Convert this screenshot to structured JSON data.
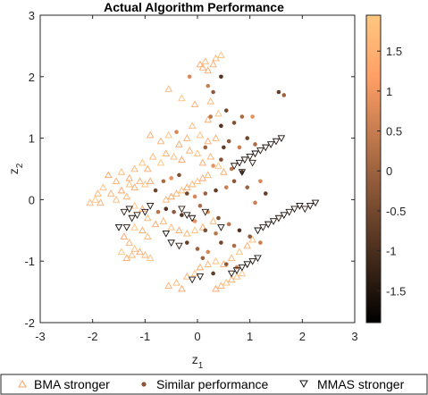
{
  "chart_data": {
    "type": "scatter",
    "title": "Actual Algorithm Performance",
    "xlabel": "z",
    "xlabel_sub": "1",
    "ylabel": "z",
    "ylabel_sub": "2",
    "xlim": [
      -3,
      3
    ],
    "ylim": [
      -2,
      3
    ],
    "x_ticks": [
      "-3",
      "-2",
      "-1",
      "0",
      "1",
      "2",
      "3"
    ],
    "y_ticks": [
      "-2",
      "-1",
      "0",
      "1",
      "2",
      "3"
    ],
    "grid": false,
    "colorbar": {
      "range": [
        -1.9,
        1.95
      ],
      "ticks": [
        "-1.5",
        "-1",
        "-0.5",
        "0",
        "0.5",
        "1",
        "1.5"
      ],
      "colormap": "copper",
      "low_color": "#000000",
      "high_color": "#ffc77f"
    },
    "legend": {
      "placement": "bottom",
      "entries": [
        "BMA stronger",
        "Similar performance",
        "MMAS stronger"
      ]
    },
    "series": [
      {
        "name": "BMA stronger",
        "marker": "triangle-up",
        "points": [
          [
            0.05,
            2.2
          ],
          [
            0.1,
            2.15
          ],
          [
            0.15,
            2.25
          ],
          [
            0.2,
            2.1
          ],
          [
            0.35,
            2.3
          ],
          [
            0.45,
            2.35
          ],
          [
            0.3,
            2.2
          ],
          [
            -0.55,
            1.8
          ],
          [
            -0.3,
            1.65
          ],
          [
            -0.05,
            1.55
          ],
          [
            0.25,
            1.6
          ],
          [
            -0.9,
            1.05
          ],
          [
            -0.7,
            0.95
          ],
          [
            -0.55,
            1.05
          ],
          [
            -0.35,
            0.9
          ],
          [
            -0.2,
            1.0
          ],
          [
            0.05,
            1.05
          ],
          [
            0.2,
            0.95
          ],
          [
            0.35,
            1.0
          ],
          [
            0.4,
            1.4
          ],
          [
            0.2,
            1.3
          ],
          [
            -0.1,
            1.2
          ],
          [
            -1.7,
            0.4
          ],
          [
            -1.55,
            0.3
          ],
          [
            -1.45,
            0.45
          ],
          [
            -1.3,
            0.35
          ],
          [
            -1.2,
            0.5
          ],
          [
            -1.05,
            0.6
          ],
          [
            -0.95,
            0.5
          ],
          [
            -0.85,
            0.7
          ],
          [
            -0.7,
            0.6
          ],
          [
            -0.6,
            0.75
          ],
          [
            -0.45,
            0.7
          ],
          [
            -0.3,
            0.65
          ],
          [
            -0.15,
            0.8
          ],
          [
            0.0,
            0.75
          ],
          [
            0.1,
            0.6
          ],
          [
            0.25,
            0.7
          ],
          [
            0.4,
            0.55
          ],
          [
            0.5,
            0.45
          ],
          [
            -1.9,
            0.1
          ],
          [
            -1.8,
            0.2
          ],
          [
            -1.65,
            0.1
          ],
          [
            -1.55,
            0.0
          ],
          [
            -1.45,
            0.15
          ],
          [
            -1.35,
            0.05
          ],
          [
            -1.3,
            0.25
          ],
          [
            -1.2,
            0.2
          ],
          [
            -1.1,
            0.3
          ],
          [
            -1.0,
            0.25
          ],
          [
            -0.9,
            0.3
          ],
          [
            -2.05,
            -0.05
          ],
          [
            -1.95,
            0.0
          ],
          [
            -1.85,
            -0.05
          ],
          [
            -0.6,
            0.0
          ],
          [
            -0.5,
            0.05
          ],
          [
            -0.4,
            0.1
          ],
          [
            -0.3,
            0.15
          ],
          [
            -0.2,
            0.2
          ],
          [
            -0.1,
            0.25
          ],
          [
            0.0,
            0.3
          ],
          [
            0.1,
            0.35
          ],
          [
            0.2,
            0.4
          ],
          [
            -1.2,
            -0.1
          ],
          [
            -1.05,
            -0.15
          ],
          [
            -0.95,
            -0.3
          ],
          [
            -0.8,
            -0.4
          ],
          [
            -0.65,
            -0.35
          ],
          [
            -0.5,
            -0.45
          ],
          [
            -0.35,
            -0.5
          ],
          [
            -0.2,
            -0.55
          ],
          [
            -0.05,
            -0.5
          ],
          [
            0.1,
            -0.45
          ],
          [
            0.3,
            -0.35
          ],
          [
            -1.2,
            -0.45
          ],
          [
            -1.05,
            -0.5
          ],
          [
            -0.95,
            -0.6
          ],
          [
            -1.4,
            -0.6
          ],
          [
            -1.3,
            -0.7
          ],
          [
            -1.2,
            -0.8
          ],
          [
            -1.1,
            -0.85
          ],
          [
            -1.0,
            -0.9
          ],
          [
            -0.9,
            -0.95
          ],
          [
            -1.35,
            -0.95
          ],
          [
            -1.25,
            -0.9
          ],
          [
            -1.45,
            -0.85
          ],
          [
            -0.55,
            -1.4
          ],
          [
            -0.4,
            -1.35
          ],
          [
            -0.3,
            -1.45
          ],
          [
            -0.2,
            -1.25
          ],
          [
            -0.05,
            -1.2
          ],
          [
            0.05,
            -1.1
          ],
          [
            0.2,
            -1.05
          ],
          [
            0.35,
            -1.0
          ],
          [
            0.5,
            -1.05
          ],
          [
            0.65,
            -0.95
          ],
          [
            0.8,
            -0.85
          ],
          [
            0.95,
            -0.75
          ],
          [
            1.05,
            -0.65
          ],
          [
            0.35,
            -1.45
          ],
          [
            0.45,
            -1.4
          ],
          [
            0.55,
            -1.35
          ],
          [
            0.65,
            -1.3
          ],
          [
            0.75,
            -1.25
          ],
          [
            0.85,
            -1.2
          ]
        ]
      },
      {
        "name": "Similar performance",
        "marker": "circle",
        "points": [
          [
            0.45,
            2.0
          ],
          [
            0.3,
            1.75
          ],
          [
            0.2,
            1.85
          ],
          [
            1.55,
            1.75
          ],
          [
            1.65,
            1.7
          ],
          [
            -0.15,
            2.0
          ],
          [
            0.55,
            1.45
          ],
          [
            0.85,
            1.35
          ],
          [
            1.05,
            1.35
          ],
          [
            0.7,
            1.25
          ],
          [
            0.25,
            1.35
          ],
          [
            0.45,
            1.2
          ],
          [
            0.6,
            0.95
          ],
          [
            0.8,
            0.85
          ],
          [
            0.5,
            0.85
          ],
          [
            0.15,
            0.85
          ],
          [
            -0.4,
            1.1
          ],
          [
            0.95,
            1.0
          ],
          [
            1.1,
            0.9
          ],
          [
            0.3,
            0.55
          ],
          [
            0.45,
            0.65
          ],
          [
            0.65,
            0.5
          ],
          [
            0.85,
            0.45
          ],
          [
            0.7,
            0.3
          ],
          [
            0.55,
            0.2
          ],
          [
            0.35,
            0.15
          ],
          [
            0.15,
            0.1
          ],
          [
            -0.05,
            0.05
          ],
          [
            -0.2,
            0.1
          ],
          [
            0.05,
            -0.1
          ],
          [
            0.2,
            -0.2
          ],
          [
            0.4,
            -0.3
          ],
          [
            0.6,
            -0.4
          ],
          [
            0.8,
            -0.5
          ],
          [
            1.0,
            -0.6
          ],
          [
            1.2,
            -0.7
          ],
          [
            -0.2,
            -0.7
          ],
          [
            0.0,
            -0.8
          ],
          [
            0.2,
            -0.85
          ],
          [
            0.45,
            -0.7
          ],
          [
            0.7,
            -0.75
          ],
          [
            -0.05,
            -0.35
          ],
          [
            0.15,
            -0.5
          ],
          [
            0.35,
            -0.55
          ],
          [
            -0.3,
            -0.25
          ],
          [
            -0.45,
            -0.2
          ],
          [
            1.1,
            -0.05
          ],
          [
            1.3,
            0.1
          ],
          [
            0.95,
            0.2
          ],
          [
            1.2,
            0.3
          ],
          [
            -0.8,
            0.15
          ],
          [
            -0.65,
            0.3
          ],
          [
            -0.5,
            0.35
          ],
          [
            -0.35,
            0.4
          ],
          [
            -0.75,
            -0.2
          ],
          [
            -0.6,
            -0.15
          ],
          [
            0.55,
            -1.05
          ],
          [
            0.75,
            -1.1
          ],
          [
            0.3,
            -1.2
          ],
          [
            0.1,
            -0.95
          ]
        ]
      },
      {
        "name": "MMAS stronger",
        "marker": "triangle-down",
        "points": [
          [
            0.7,
            0.55
          ],
          [
            0.8,
            0.6
          ],
          [
            0.9,
            0.65
          ],
          [
            1.0,
            0.7
          ],
          [
            1.1,
            0.75
          ],
          [
            1.2,
            0.8
          ],
          [
            1.3,
            0.85
          ],
          [
            1.4,
            0.9
          ],
          [
            1.5,
            0.95
          ],
          [
            1.6,
            1.0
          ],
          [
            0.85,
            0.45
          ],
          [
            1.05,
            0.6
          ],
          [
            1.35,
            -0.4
          ],
          [
            1.45,
            -0.35
          ],
          [
            1.55,
            -0.3
          ],
          [
            1.65,
            -0.25
          ],
          [
            1.75,
            -0.2
          ],
          [
            1.85,
            -0.15
          ],
          [
            1.95,
            -0.1
          ],
          [
            2.05,
            -0.15
          ],
          [
            2.15,
            -0.1
          ],
          [
            2.25,
            -0.05
          ],
          [
            1.25,
            -0.45
          ],
          [
            1.15,
            -0.5
          ],
          [
            0.75,
            -1.15
          ],
          [
            0.85,
            -1.1
          ],
          [
            0.95,
            -1.05
          ],
          [
            1.05,
            -1.0
          ],
          [
            1.15,
            -0.95
          ],
          [
            0.65,
            -1.2
          ],
          [
            -1.4,
            -0.2
          ],
          [
            -1.3,
            -0.15
          ],
          [
            -1.25,
            -0.3
          ],
          [
            -1.15,
            -0.25
          ],
          [
            -1.0,
            -0.2
          ],
          [
            -0.9,
            -0.1
          ],
          [
            -1.35,
            -0.45
          ],
          [
            -1.5,
            -0.45
          ],
          [
            -0.3,
            -0.15
          ],
          [
            -0.2,
            -0.25
          ],
          [
            -0.1,
            -0.3
          ],
          [
            0.15,
            -0.2
          ],
          [
            0.45,
            -0.45
          ],
          [
            -0.5,
            -0.7
          ],
          [
            -0.35,
            -0.75
          ],
          [
            -0.6,
            -0.55
          ],
          [
            0.05,
            -1.25
          ],
          [
            -0.1,
            -1.3
          ]
        ]
      }
    ]
  }
}
